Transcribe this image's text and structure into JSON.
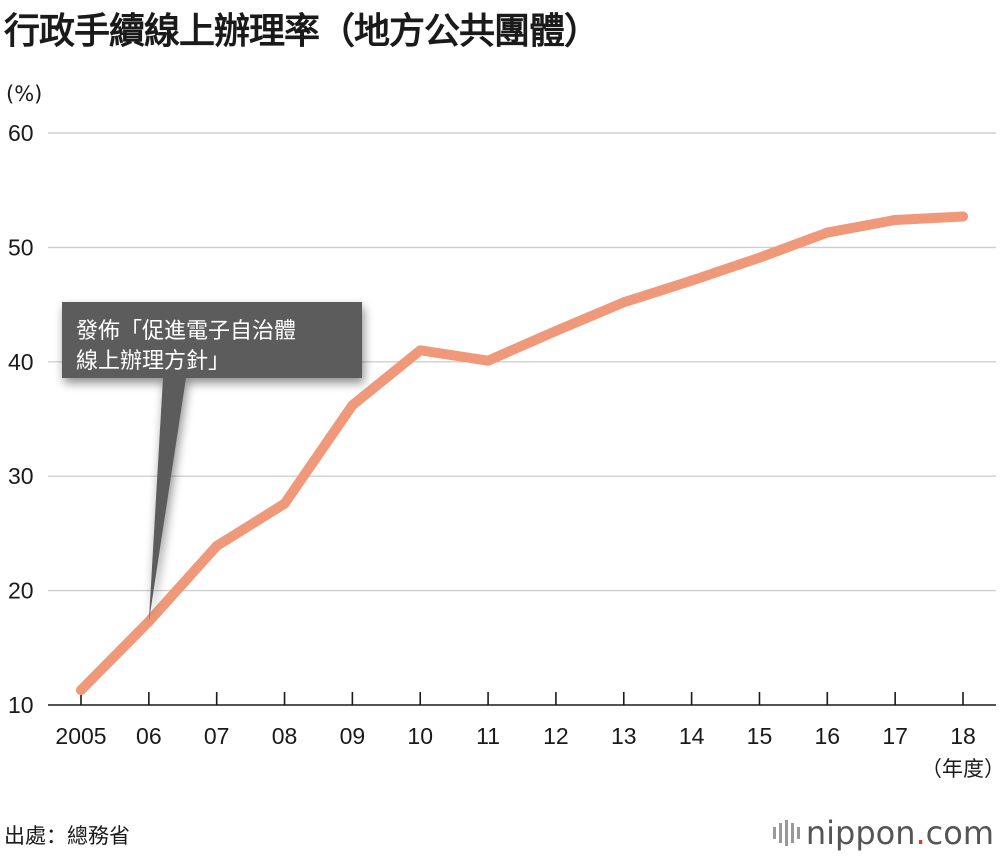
{
  "title": "行政手續線上辦理率（地方公共團體）",
  "source": "出處：總務省",
  "logo": {
    "name": "nippon",
    "dot": ".",
    "suffix": "com"
  },
  "chart_data": {
    "type": "line",
    "title": "行政手續線上辦理率（地方公共團體）",
    "ylabel": "(%)",
    "xlabel": "（年度）",
    "ylim": [
      10,
      60
    ],
    "yticks": [
      10,
      20,
      30,
      40,
      50,
      60
    ],
    "grid": true,
    "categories": [
      "2005",
      "06",
      "07",
      "08",
      "09",
      "10",
      "11",
      "12",
      "13",
      "14",
      "15",
      "16",
      "17",
      "18"
    ],
    "series": [
      {
        "name": "行政手續線上辦理率",
        "color": "#f0997a",
        "values": [
          11.3,
          17.3,
          23.9,
          27.6,
          36.2,
          41.0,
          40.1,
          42.7,
          45.2,
          47.1,
          49.1,
          51.3,
          52.4,
          52.7
        ]
      }
    ],
    "annotation": {
      "text_lines": [
        "發佈「促進電子自治體",
        "線上辦理方針」"
      ],
      "category": "06",
      "box_color": "#5b5b5b"
    }
  }
}
